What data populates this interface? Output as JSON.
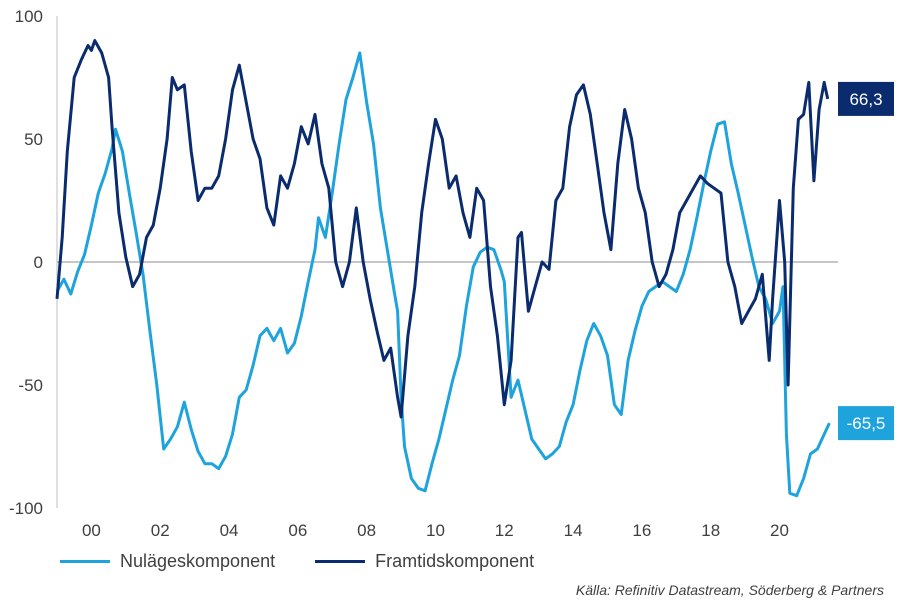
{
  "chart_data": {
    "type": "line",
    "title": "",
    "xlabel": "",
    "ylabel": "",
    "ylim": [
      -100,
      100
    ],
    "y_ticks": [
      100,
      50,
      0,
      -50,
      -100
    ],
    "xlim": [
      1999,
      2021.7
    ],
    "x_tick_values": [
      2000,
      2002,
      2004,
      2006,
      2008,
      2010,
      2012,
      2014,
      2016,
      2018,
      2020
    ],
    "x_tick_labels": [
      "00",
      "02",
      "04",
      "06",
      "08",
      "10",
      "12",
      "14",
      "16",
      "18",
      "20"
    ],
    "grid": false,
    "legend_position": "bottom-left",
    "source": "Källa: Refinitiv Datastream, Söderberg & Partners",
    "end_labels": [
      {
        "text": "66,3",
        "series": 1,
        "color": "#0A2B6E"
      },
      {
        "text": "-65,5",
        "series": 0,
        "color": "#1FA3DC"
      }
    ],
    "series": [
      {
        "name": "Nulägeskomponent",
        "color": "#1FA3DC",
        "points": [
          [
            1999.0,
            -12
          ],
          [
            1999.2,
            -7
          ],
          [
            1999.4,
            -13
          ],
          [
            1999.6,
            -4
          ],
          [
            1999.8,
            3
          ],
          [
            2000.0,
            15
          ],
          [
            2000.2,
            28
          ],
          [
            2000.4,
            36
          ],
          [
            2000.6,
            46
          ],
          [
            2000.7,
            54
          ],
          [
            2000.9,
            45
          ],
          [
            2001.1,
            28
          ],
          [
            2001.3,
            12
          ],
          [
            2001.5,
            -5
          ],
          [
            2001.7,
            -28
          ],
          [
            2001.9,
            -50
          ],
          [
            2002.1,
            -76
          ],
          [
            2002.3,
            -72
          ],
          [
            2002.5,
            -67
          ],
          [
            2002.7,
            -57
          ],
          [
            2002.9,
            -68
          ],
          [
            2003.1,
            -77
          ],
          [
            2003.3,
            -82
          ],
          [
            2003.5,
            -82
          ],
          [
            2003.7,
            -84
          ],
          [
            2003.9,
            -79
          ],
          [
            2004.1,
            -70
          ],
          [
            2004.3,
            -55
          ],
          [
            2004.5,
            -52
          ],
          [
            2004.7,
            -42
          ],
          [
            2004.9,
            -30
          ],
          [
            2005.1,
            -27
          ],
          [
            2005.3,
            -32
          ],
          [
            2005.5,
            -27
          ],
          [
            2005.7,
            -37
          ],
          [
            2005.9,
            -33
          ],
          [
            2006.1,
            -22
          ],
          [
            2006.3,
            -8
          ],
          [
            2006.5,
            5
          ],
          [
            2006.6,
            18
          ],
          [
            2006.8,
            10
          ],
          [
            2007.0,
            28
          ],
          [
            2007.2,
            48
          ],
          [
            2007.4,
            66
          ],
          [
            2007.6,
            75
          ],
          [
            2007.8,
            85
          ],
          [
            2008.0,
            65
          ],
          [
            2008.2,
            48
          ],
          [
            2008.4,
            22
          ],
          [
            2008.6,
            5
          ],
          [
            2008.8,
            -12
          ],
          [
            2008.9,
            -20
          ],
          [
            2009.0,
            -55
          ],
          [
            2009.1,
            -75
          ],
          [
            2009.3,
            -88
          ],
          [
            2009.5,
            -92
          ],
          [
            2009.7,
            -93
          ],
          [
            2009.9,
            -82
          ],
          [
            2010.1,
            -72
          ],
          [
            2010.3,
            -60
          ],
          [
            2010.5,
            -48
          ],
          [
            2010.7,
            -38
          ],
          [
            2010.9,
            -18
          ],
          [
            2011.1,
            -2
          ],
          [
            2011.3,
            4
          ],
          [
            2011.5,
            6
          ],
          [
            2011.7,
            5
          ],
          [
            2011.9,
            -3
          ],
          [
            2012.0,
            -8
          ],
          [
            2012.2,
            -55
          ],
          [
            2012.4,
            -48
          ],
          [
            2012.6,
            -60
          ],
          [
            2012.8,
            -72
          ],
          [
            2013.0,
            -76
          ],
          [
            2013.2,
            -80
          ],
          [
            2013.4,
            -78
          ],
          [
            2013.6,
            -75
          ],
          [
            2013.8,
            -65
          ],
          [
            2014.0,
            -58
          ],
          [
            2014.2,
            -44
          ],
          [
            2014.4,
            -32
          ],
          [
            2014.6,
            -25
          ],
          [
            2014.8,
            -30
          ],
          [
            2015.0,
            -38
          ],
          [
            2015.2,
            -58
          ],
          [
            2015.4,
            -62
          ],
          [
            2015.6,
            -40
          ],
          [
            2015.8,
            -28
          ],
          [
            2016.0,
            -18
          ],
          [
            2016.2,
            -12
          ],
          [
            2016.4,
            -10
          ],
          [
            2016.6,
            -8
          ],
          [
            2016.8,
            -10
          ],
          [
            2017.0,
            -12
          ],
          [
            2017.2,
            -5
          ],
          [
            2017.4,
            5
          ],
          [
            2017.6,
            18
          ],
          [
            2017.8,
            32
          ],
          [
            2018.0,
            45
          ],
          [
            2018.2,
            56
          ],
          [
            2018.4,
            57
          ],
          [
            2018.6,
            40
          ],
          [
            2018.8,
            28
          ],
          [
            2019.0,
            15
          ],
          [
            2019.2,
            2
          ],
          [
            2019.4,
            -10
          ],
          [
            2019.6,
            -15
          ],
          [
            2019.8,
            -25
          ],
          [
            2020.0,
            -20
          ],
          [
            2020.1,
            -10
          ],
          [
            2020.2,
            -70
          ],
          [
            2020.3,
            -94
          ],
          [
            2020.5,
            -95
          ],
          [
            2020.7,
            -88
          ],
          [
            2020.9,
            -78
          ],
          [
            2021.1,
            -76
          ],
          [
            2021.3,
            -70
          ],
          [
            2021.45,
            -65.5
          ]
        ]
      },
      {
        "name": "Framtidskomponent",
        "color": "#0A2B6E",
        "points": [
          [
            1999.0,
            -15
          ],
          [
            1999.15,
            10
          ],
          [
            1999.3,
            45
          ],
          [
            1999.5,
            75
          ],
          [
            1999.7,
            82
          ],
          [
            1999.9,
            88
          ],
          [
            2000.0,
            86
          ],
          [
            2000.1,
            90
          ],
          [
            2000.3,
            85
          ],
          [
            2000.5,
            75
          ],
          [
            2000.6,
            55
          ],
          [
            2000.8,
            20
          ],
          [
            2001.0,
            2
          ],
          [
            2001.2,
            -10
          ],
          [
            2001.4,
            -5
          ],
          [
            2001.6,
            10
          ],
          [
            2001.8,
            15
          ],
          [
            2002.0,
            30
          ],
          [
            2002.2,
            50
          ],
          [
            2002.35,
            75
          ],
          [
            2002.5,
            70
          ],
          [
            2002.7,
            72
          ],
          [
            2002.9,
            45
          ],
          [
            2003.1,
            25
          ],
          [
            2003.3,
            30
          ],
          [
            2003.5,
            30
          ],
          [
            2003.7,
            35
          ],
          [
            2003.9,
            50
          ],
          [
            2004.1,
            70
          ],
          [
            2004.3,
            80
          ],
          [
            2004.5,
            65
          ],
          [
            2004.7,
            50
          ],
          [
            2004.9,
            42
          ],
          [
            2005.1,
            22
          ],
          [
            2005.3,
            15
          ],
          [
            2005.5,
            35
          ],
          [
            2005.7,
            30
          ],
          [
            2005.9,
            40
          ],
          [
            2006.1,
            55
          ],
          [
            2006.3,
            48
          ],
          [
            2006.5,
            60
          ],
          [
            2006.7,
            40
          ],
          [
            2006.9,
            30
          ],
          [
            2007.1,
            0
          ],
          [
            2007.3,
            -10
          ],
          [
            2007.5,
            0
          ],
          [
            2007.7,
            22
          ],
          [
            2007.9,
            0
          ],
          [
            2008.1,
            -15
          ],
          [
            2008.3,
            -28
          ],
          [
            2008.5,
            -40
          ],
          [
            2008.7,
            -35
          ],
          [
            2008.9,
            -55
          ],
          [
            2009.0,
            -63
          ],
          [
            2009.2,
            -30
          ],
          [
            2009.4,
            -10
          ],
          [
            2009.6,
            20
          ],
          [
            2009.8,
            40
          ],
          [
            2010.0,
            58
          ],
          [
            2010.2,
            50
          ],
          [
            2010.4,
            30
          ],
          [
            2010.6,
            35
          ],
          [
            2010.8,
            20
          ],
          [
            2011.0,
            10
          ],
          [
            2011.2,
            30
          ],
          [
            2011.4,
            25
          ],
          [
            2011.6,
            -10
          ],
          [
            2011.8,
            -30
          ],
          [
            2012.0,
            -58
          ],
          [
            2012.2,
            -40
          ],
          [
            2012.4,
            10
          ],
          [
            2012.5,
            12
          ],
          [
            2012.7,
            -20
          ],
          [
            2012.9,
            -10
          ],
          [
            2013.1,
            0
          ],
          [
            2013.3,
            -3
          ],
          [
            2013.5,
            25
          ],
          [
            2013.7,
            30
          ],
          [
            2013.9,
            55
          ],
          [
            2014.1,
            68
          ],
          [
            2014.3,
            72
          ],
          [
            2014.5,
            60
          ],
          [
            2014.7,
            40
          ],
          [
            2014.9,
            20
          ],
          [
            2015.1,
            5
          ],
          [
            2015.3,
            40
          ],
          [
            2015.5,
            62
          ],
          [
            2015.7,
            50
          ],
          [
            2015.9,
            30
          ],
          [
            2016.1,
            20
          ],
          [
            2016.3,
            0
          ],
          [
            2016.5,
            -10
          ],
          [
            2016.7,
            -5
          ],
          [
            2016.9,
            5
          ],
          [
            2017.1,
            20
          ],
          [
            2017.3,
            25
          ],
          [
            2017.5,
            30
          ],
          [
            2017.7,
            35
          ],
          [
            2017.9,
            32
          ],
          [
            2018.1,
            30
          ],
          [
            2018.3,
            28
          ],
          [
            2018.5,
            0
          ],
          [
            2018.7,
            -10
          ],
          [
            2018.9,
            -25
          ],
          [
            2019.1,
            -20
          ],
          [
            2019.3,
            -15
          ],
          [
            2019.5,
            -5
          ],
          [
            2019.7,
            -40
          ],
          [
            2019.8,
            -15
          ],
          [
            2020.0,
            25
          ],
          [
            2020.15,
            0
          ],
          [
            2020.25,
            -50
          ],
          [
            2020.4,
            30
          ],
          [
            2020.55,
            58
          ],
          [
            2020.7,
            60
          ],
          [
            2020.85,
            73
          ],
          [
            2021.0,
            33
          ],
          [
            2021.15,
            62
          ],
          [
            2021.3,
            73
          ],
          [
            2021.4,
            66.3
          ]
        ]
      }
    ]
  }
}
